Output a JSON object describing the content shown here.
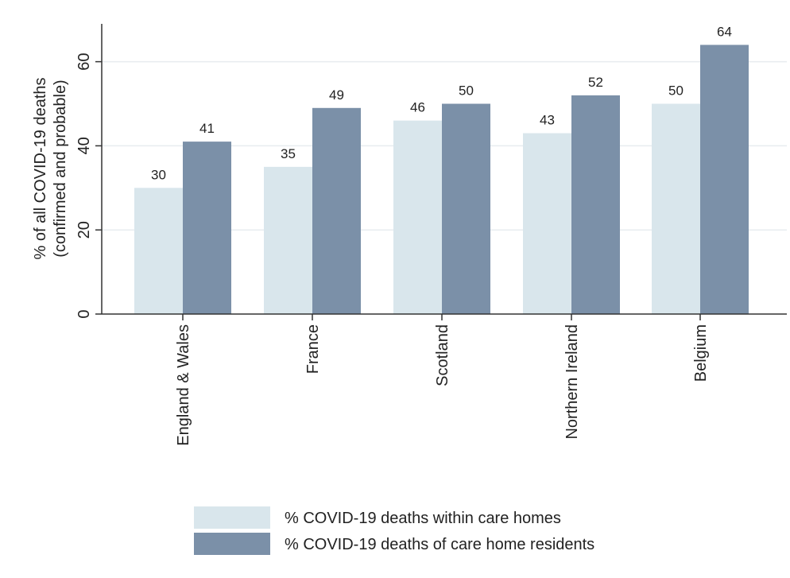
{
  "chart_data": {
    "type": "bar",
    "categories": [
      "England & Wales",
      "France",
      "Scotland",
      "Northern Ireland",
      "Belgium"
    ],
    "series": [
      {
        "name": "% COVID-19 deaths within care homes",
        "values": [
          30,
          35,
          46,
          43,
          50
        ],
        "labels": [
          "30",
          "35",
          "46",
          "43",
          "50"
        ],
        "color": "#d9e6ec"
      },
      {
        "name": "% COVID-19 deaths of care home residents",
        "values": [
          41,
          49,
          50,
          52,
          64
        ],
        "labels": [
          "41",
          "49",
          "50",
          "52",
          "64"
        ],
        "color": "#7b90a8"
      }
    ],
    "ylabel_lines": [
      "% of all COVID-19 deaths",
      "(confirmed and probable)"
    ],
    "yticks": [
      0,
      20,
      40,
      60
    ],
    "yticklabels": [
      "0",
      "20",
      "40",
      "60"
    ],
    "ylim": [
      0,
      69
    ],
    "grid": true,
    "legend_position": "bottom"
  },
  "colors": {
    "axis": "#333333",
    "grid": "#e8ecef"
  }
}
